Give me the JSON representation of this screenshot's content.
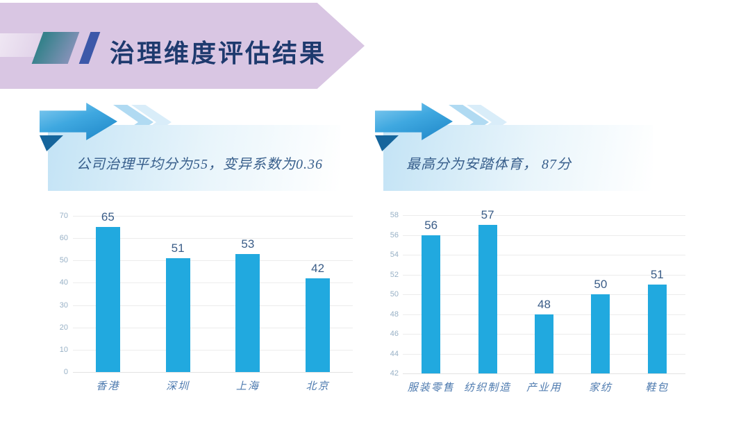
{
  "title": {
    "text": "治理维度评估结果"
  },
  "callouts": [
    {
      "text": "公司治理平均分为55，变异系数为0.36"
    },
    {
      "text": "最高分为安踏体育， 87分"
    }
  ],
  "icons": {
    "title_banner": "arrow-banner-shape",
    "callout_arrow": "right-arrow",
    "callout_chevrons": "double-chevron-right"
  },
  "colors": {
    "banner_purple": "#d9c6e3",
    "title_navy": "#1e3a6e",
    "arrow_blue": "#2d9ad6",
    "fold_blue": "#15659c",
    "box_blue": "#c3e3f5",
    "bar_cyan": "#21a9df",
    "value_label": "#3a5c87",
    "tick_label": "#98b1c6",
    "category_label": "#4c79ae",
    "gridline": "#ececec"
  },
  "chart_data": [
    {
      "type": "bar",
      "categories": [
        "香港",
        "深圳",
        "上海",
        "北京"
      ],
      "values": [
        65,
        51,
        53,
        42
      ],
      "title": "",
      "xlabel": "",
      "ylabel": "",
      "ylim": [
        0,
        70
      ],
      "ytick_step": 10,
      "grid": true,
      "legend": "none",
      "bar_color": "#21a9df"
    },
    {
      "type": "bar",
      "categories": [
        "服装零售",
        "纺织制造",
        "产业用",
        "家纺",
        "鞋包"
      ],
      "values": [
        56,
        57,
        48,
        50,
        51
      ],
      "title": "",
      "xlabel": "",
      "ylabel": "",
      "ylim": [
        42,
        58
      ],
      "ytick_step": 2,
      "grid": true,
      "legend": "none",
      "bar_color": "#21a9df"
    }
  ]
}
